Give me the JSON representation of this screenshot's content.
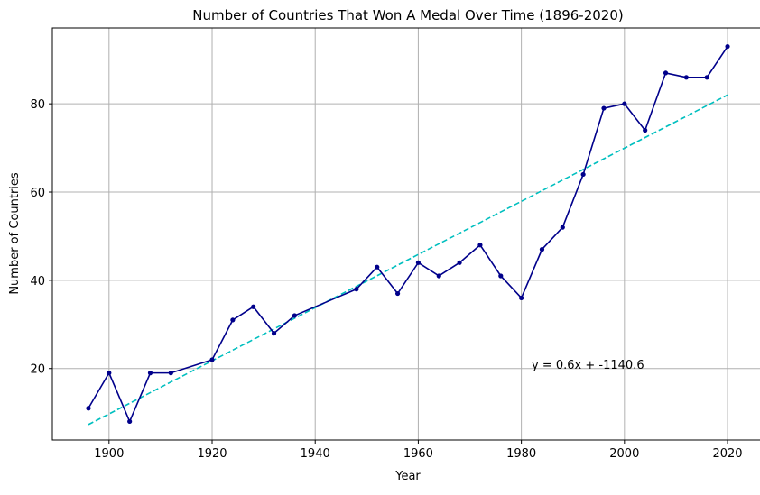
{
  "chart_data": {
    "type": "line",
    "title": "Number of Countries That Won A Medal Over Time (1896-2020)",
    "xlabel": "Year",
    "ylabel": "Number of Countries",
    "xlim": [
      1889,
      2027
    ],
    "ylim": [
      3.8,
      97.2
    ],
    "grid": true,
    "x_ticks": [
      1900,
      1920,
      1940,
      1960,
      1980,
      2000,
      2020
    ],
    "y_ticks": [
      20,
      40,
      60,
      80
    ],
    "series": [
      {
        "x": [
          1896,
          1900,
          1904,
          1908,
          1912,
          1920,
          1924,
          1928,
          1932,
          1936,
          1948,
          1952,
          1956,
          1960,
          1964,
          1968,
          1972,
          1976,
          1980,
          1984,
          1988,
          1992,
          1996,
          2000,
          2004,
          2008,
          2012,
          2016,
          2020
        ],
        "values": [
          11,
          19,
          8,
          19,
          19,
          22,
          31,
          34,
          28,
          32,
          38,
          43,
          37,
          44,
          41,
          44,
          48,
          41,
          36,
          47,
          52,
          64,
          79,
          80,
          74,
          87,
          86,
          86,
          93
        ],
        "color": "#00008b",
        "marker": "circle"
      }
    ],
    "trendline": {
      "x_range": [
        1896,
        2020
      ],
      "y_range": [
        7.3,
        82.0
      ],
      "color": "#00bfbf",
      "style": "dashed"
    },
    "annotation": {
      "text": "y = 0.6x + -1140.6",
      "x": 1982,
      "y": 21
    }
  }
}
